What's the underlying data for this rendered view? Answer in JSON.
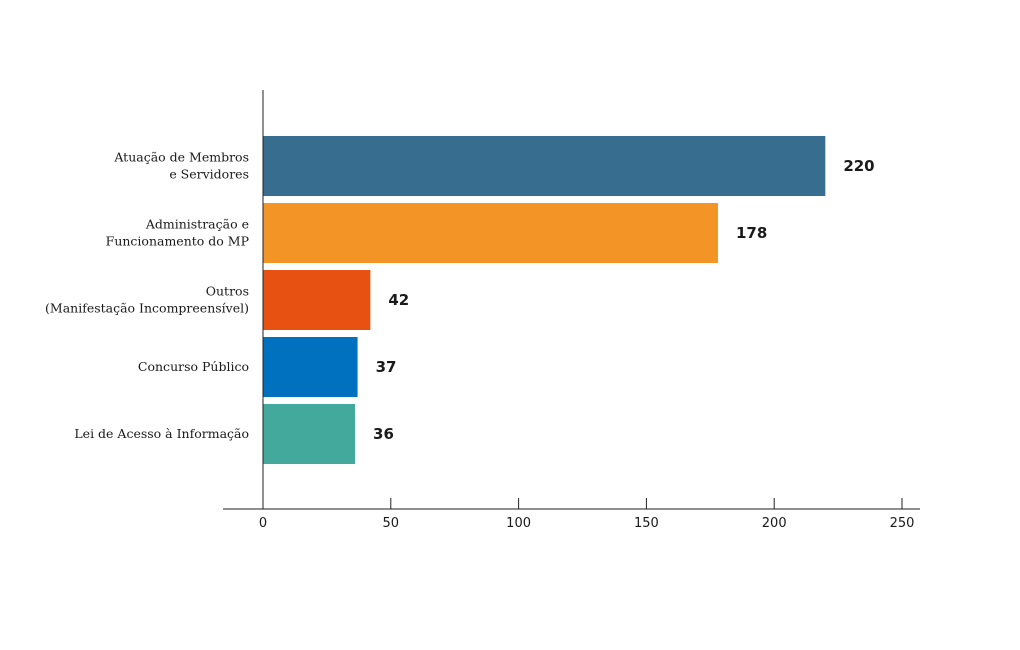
{
  "chart_data": {
    "type": "bar",
    "orientation": "horizontal",
    "categories": [
      [
        "Atuação de Membros",
        "e Servidores"
      ],
      [
        "Administração e",
        "Funcionamento do MP"
      ],
      [
        "Outros",
        "(Manifestação Incompreensível)"
      ],
      [
        "Concurso Público"
      ],
      [
        "Lei de Acesso à Informação"
      ]
    ],
    "values": [
      220,
      178,
      42,
      37,
      36
    ],
    "value_labels": [
      "220",
      "178",
      "42",
      "37",
      "36"
    ],
    "colors": [
      "#376D8F",
      "#F39427",
      "#E75212",
      "#0071BE",
      "#42A99C"
    ],
    "xlim": [
      0,
      250
    ],
    "xticks": [
      0,
      50,
      100,
      150,
      200,
      250
    ],
    "xtick_labels": [
      "0",
      "50",
      "100",
      "150",
      "200",
      "250"
    ],
    "grid": false,
    "legend": false,
    "title": "",
    "xlabel": "",
    "ylabel": ""
  }
}
